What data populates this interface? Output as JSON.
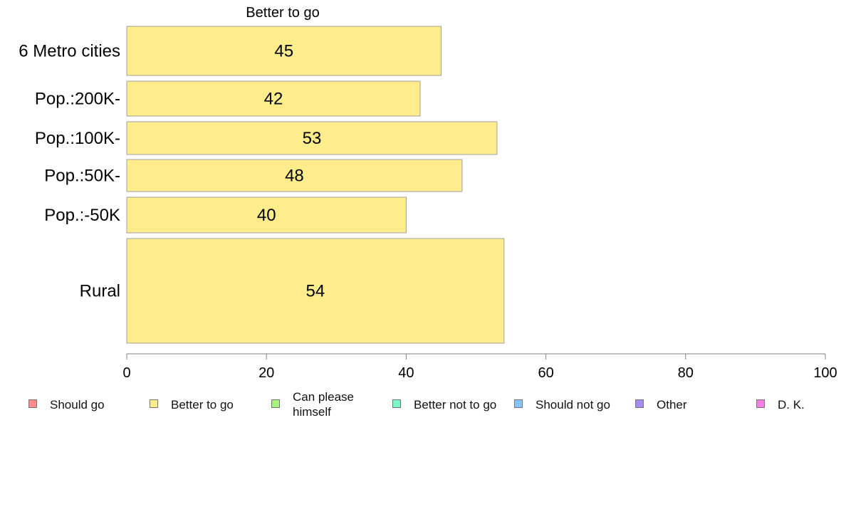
{
  "chart_data": {
    "type": "bar",
    "orientation": "horizontal",
    "title": "Better to go",
    "categories": [
      "6 Metro cities",
      "Pop.:200K-",
      "Pop.:100K-",
      "Pop.:50K-",
      "Pop.:-50K",
      "Rural"
    ],
    "values": [
      45,
      42,
      53,
      48,
      40,
      54
    ],
    "data_labels": [
      "45",
      "42",
      "53",
      "48",
      "40",
      "54"
    ],
    "bar_color": "#FFEC8B",
    "xlim": [
      0,
      100
    ],
    "x_ticks": [
      "0",
      "20",
      "40",
      "60",
      "80",
      "100"
    ],
    "grid": false,
    "legend_position": "bottom",
    "legend": [
      {
        "label": "Should go",
        "color": "#FF8C8C"
      },
      {
        "label": "Better to go",
        "color": "#FFEC8B"
      },
      {
        "label": "Can please himself",
        "color": "#A6F27A"
      },
      {
        "label": "Better not to go",
        "color": "#7DF5C4"
      },
      {
        "label": "Should not go",
        "color": "#85C4FF"
      },
      {
        "label": "Other",
        "color": "#A68CF2"
      },
      {
        "label": "D. K.",
        "color": "#F57DE6"
      }
    ]
  }
}
